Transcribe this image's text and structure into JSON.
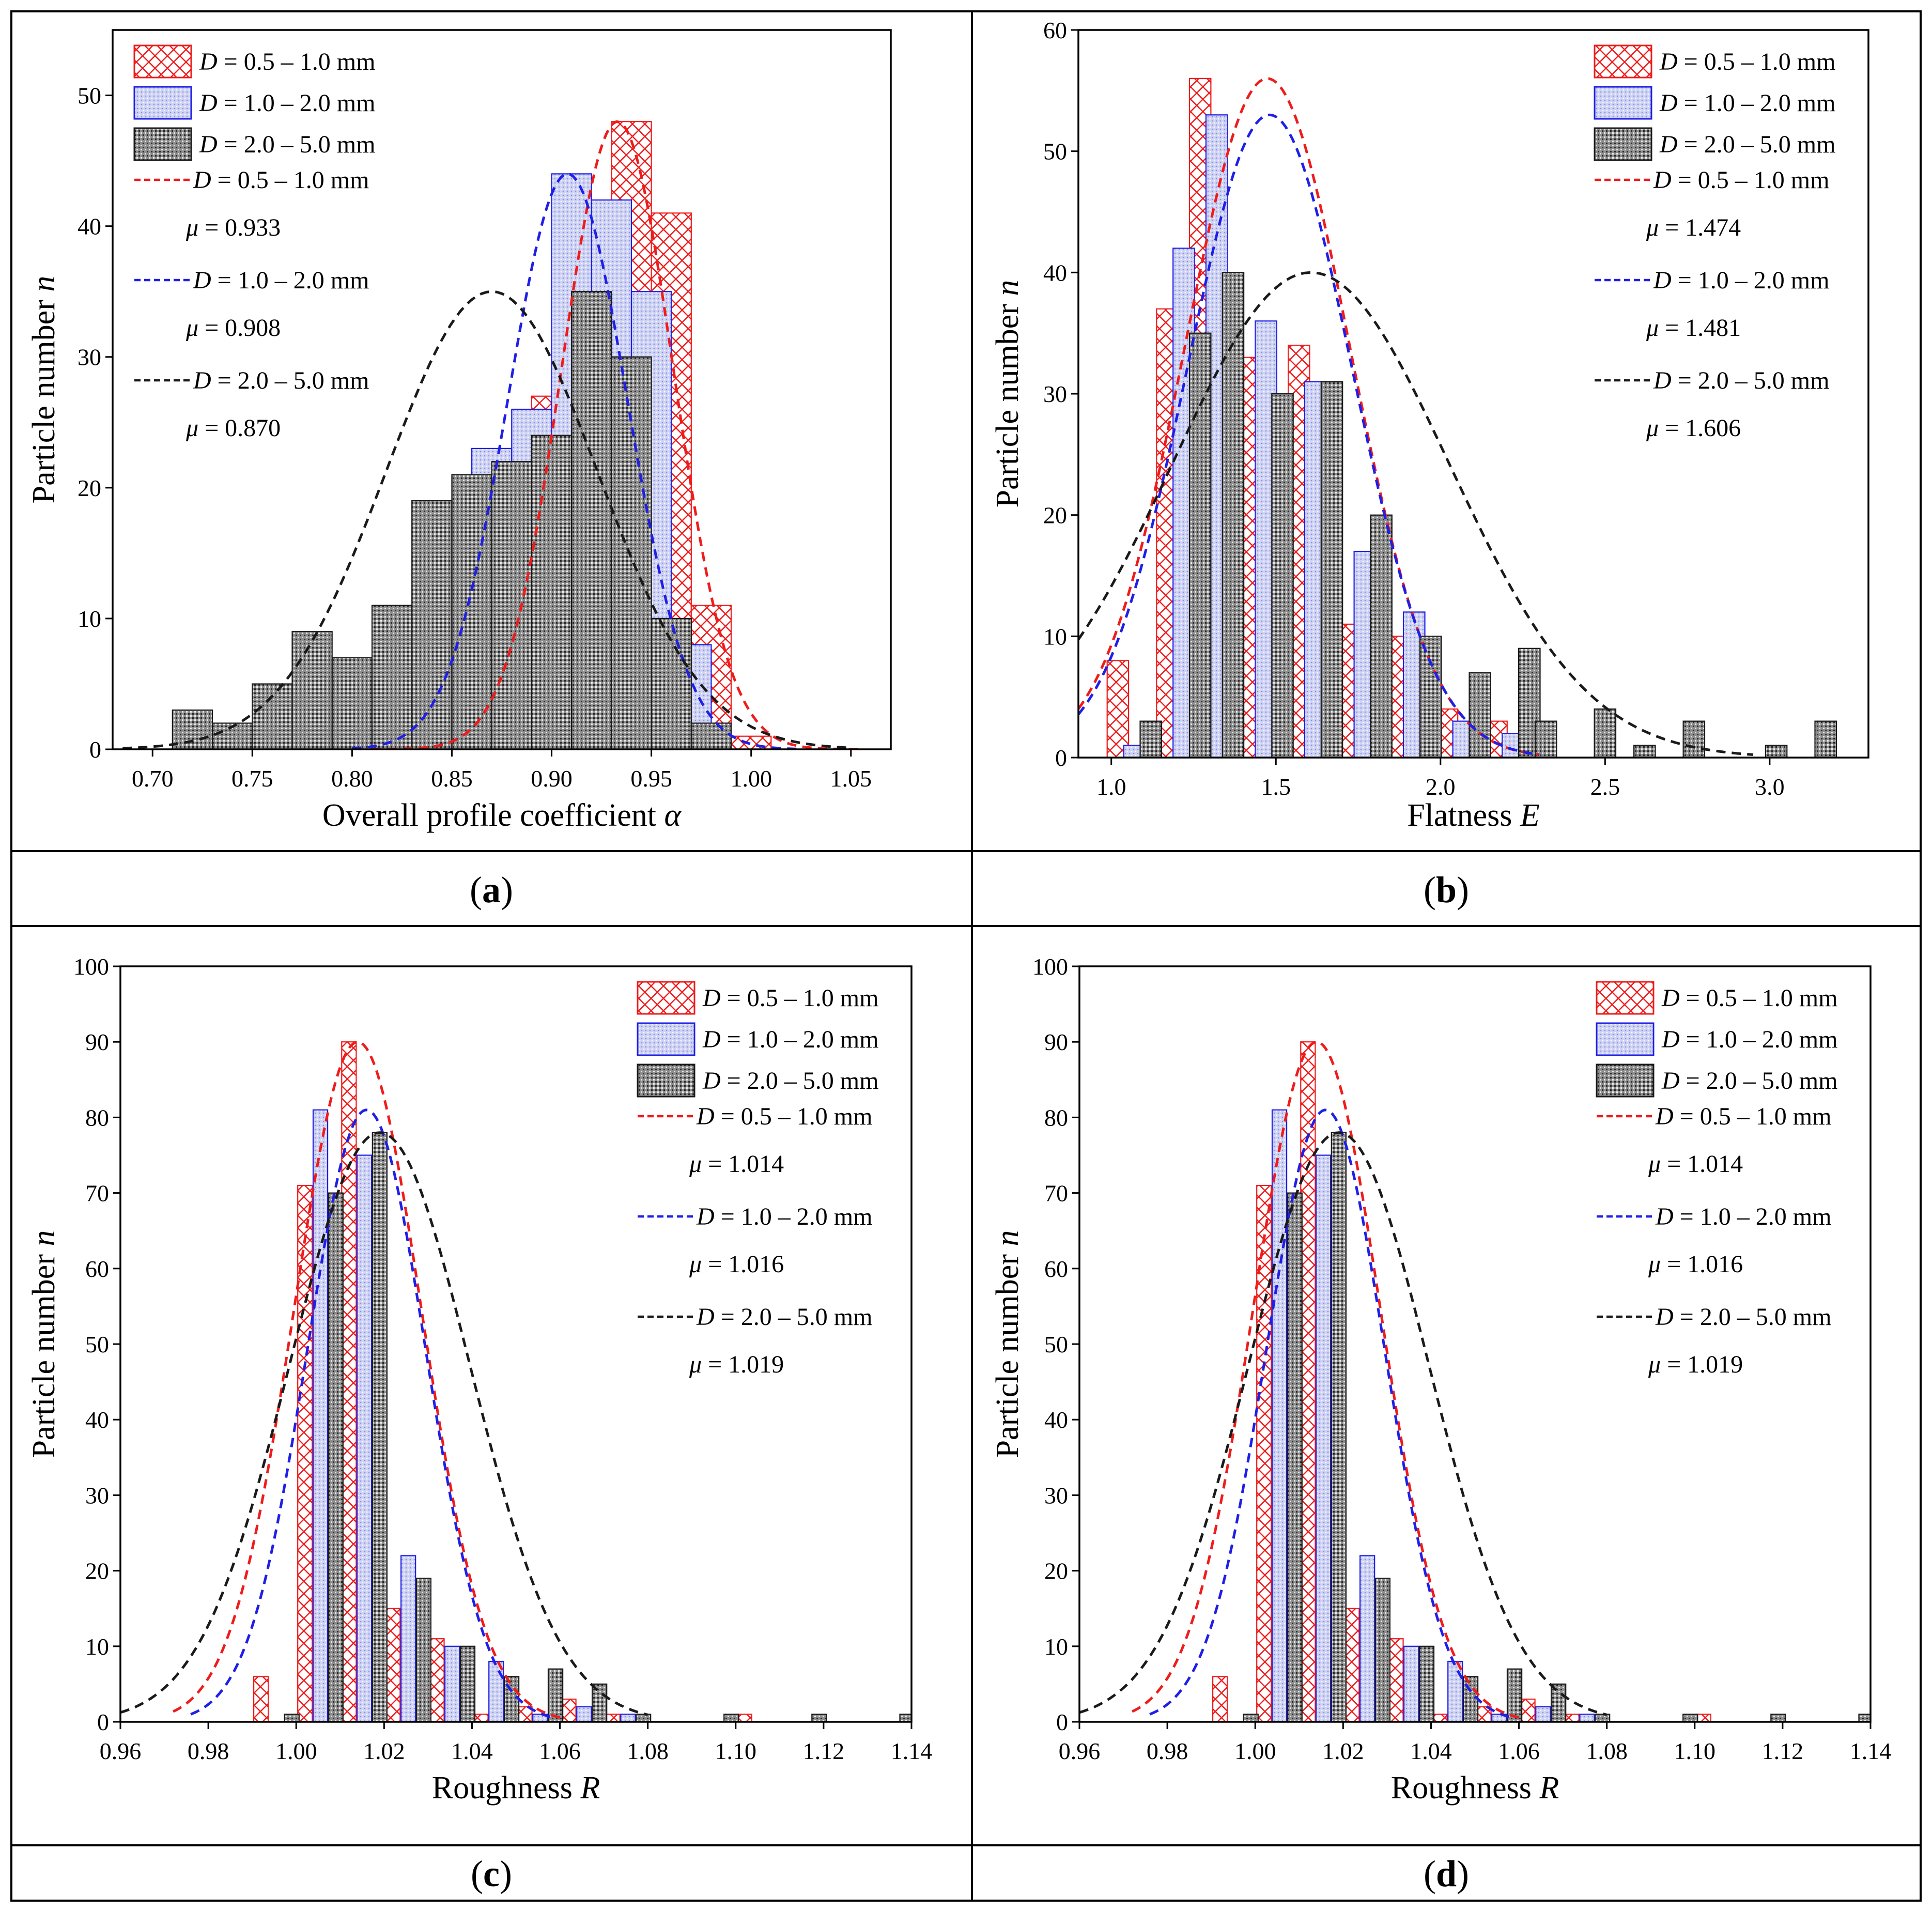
{
  "colors": {
    "red": "#ee1c1c",
    "blue": "#1f1fe6",
    "black": "#1a1a1a",
    "blue_fill": "#cfd3f3",
    "dark_fill": "#8d8d8d"
  },
  "legend_texts": {
    "bar_labels": [
      "= 0.5 – 1.0 mm",
      "= 1.0 – 2.0 mm",
      "= 2.0 – 5.0 mm"
    ],
    "line_labels": [
      "= 0.5 – 1.0 mm",
      "= 1.0 – 2.0 mm",
      "= 2.0 – 5.0 mm"
    ],
    "d_symbol": "D",
    "mu_symbol": "μ"
  },
  "y_axis_label": {
    "text": "Particle number ",
    "var": "n"
  },
  "chart_data": [
    {
      "type": "bar",
      "id": "a",
      "panel_label": "(a)",
      "panel_letter": "a",
      "xlabel": "Overall profile coefficient ",
      "xlabel_var": "α",
      "xlim": [
        0.68,
        1.07
      ],
      "ylim": [
        0,
        55
      ],
      "x_ticks": [
        "0.70",
        "0.75",
        "0.80",
        "0.85",
        "0.90",
        "0.95",
        "1.00",
        "1.05"
      ],
      "y_ticks": [
        "0",
        "10",
        "20",
        "30",
        "40",
        "50"
      ],
      "bin_width": 0.02,
      "mu_values": [
        "= 0.933",
        "= 0.908",
        "= 0.870"
      ],
      "series": [
        {
          "name": "D = 0.5 – 1.0 mm",
          "x": [
            0.8,
            0.82,
            0.84,
            0.86,
            0.88,
            0.9,
            0.92,
            0.94,
            0.96,
            0.98,
            1.0
          ],
          "values": [
            1,
            4,
            5,
            12,
            14,
            27,
            35,
            48,
            41,
            11,
            1
          ]
        },
        {
          "name": "D = 1.0 – 2.0 mm",
          "x": [
            0.81,
            0.83,
            0.85,
            0.87,
            0.89,
            0.91,
            0.93,
            0.95,
            0.97
          ],
          "values": [
            0.5,
            6,
            16,
            23,
            26,
            44,
            42,
            35,
            8
          ]
        },
        {
          "name": "D = 2.0 – 5.0 mm",
          "x": [
            0.72,
            0.74,
            0.76,
            0.78,
            0.8,
            0.82,
            0.84,
            0.86,
            0.88,
            0.9,
            0.92,
            0.94,
            0.96,
            0.98
          ],
          "values": [
            3,
            2,
            5,
            9,
            7,
            11,
            19,
            21,
            22,
            24,
            35,
            30,
            10,
            2
          ]
        }
      ],
      "fits": [
        {
          "name": "D = 0.5 – 1.0 mm",
          "mu": 0.933,
          "peak": 48,
          "sigma": 0.028,
          "from": 0.81,
          "to": 1.055
        },
        {
          "name": "D = 1.0 – 2.0 mm",
          "mu": 0.908,
          "peak": 44,
          "sigma": 0.03,
          "from": 0.8,
          "to": 1.025
        },
        {
          "name": "D = 2.0 – 5.0 mm",
          "mu": 0.87,
          "peak": 35,
          "sigma": 0.053,
          "from": 0.685,
          "to": 1.05
        }
      ]
    },
    {
      "type": "bar",
      "id": "b",
      "panel_label": "(b)",
      "panel_letter": "b",
      "xlabel": "Flatness ",
      "xlabel_var": "E",
      "xlim": [
        0.9,
        3.3
      ],
      "ylim": [
        0,
        60
      ],
      "x_ticks": [
        "1.0",
        "1.5",
        "2.0",
        "2.5",
        "3.0"
      ],
      "y_ticks": [
        "0",
        "10",
        "20",
        "30",
        "40",
        "50",
        "60"
      ],
      "bin_width": 0.065,
      "mu_values": [
        "= 1.474",
        "= 1.481",
        "= 1.606"
      ],
      "series": [
        {
          "name": "D = 0.5 – 1.0 mm",
          "x": [
            1.02,
            1.17,
            1.27,
            1.42,
            1.57,
            1.72,
            1.87,
            2.02,
            2.17
          ],
          "values": [
            8,
            37,
            56,
            33,
            34,
            11,
            10,
            4,
            3
          ]
        },
        {
          "name": "D = 1.0 – 2.0 mm",
          "x": [
            1.07,
            1.22,
            1.32,
            1.47,
            1.62,
            1.77,
            1.92,
            2.07,
            2.22
          ],
          "values": [
            1,
            42,
            53,
            36,
            31,
            17,
            12,
            3,
            2
          ]
        },
        {
          "name": "D = 2.0 – 5.0 mm",
          "x": [
            1.12,
            1.27,
            1.37,
            1.52,
            1.67,
            1.82,
            1.97,
            2.12,
            2.27,
            2.32,
            2.5,
            2.62,
            2.77,
            3.02,
            3.17
          ],
          "values": [
            3,
            35,
            40,
            30,
            31,
            20,
            10,
            7,
            9,
            3,
            4,
            1,
            3,
            1,
            3
          ]
        }
      ],
      "fits": [
        {
          "name": "D = 0.5 – 1.0 mm",
          "mu": 1.474,
          "peak": 56,
          "sigma": 0.25,
          "from": 0.9,
          "to": 2.3
        },
        {
          "name": "D = 1.0 – 2.0 mm",
          "mu": 1.481,
          "peak": 53,
          "sigma": 0.25,
          "from": 0.9,
          "to": 2.3
        },
        {
          "name": "D = 2.0 – 5.0 mm",
          "mu": 1.606,
          "peak": 40,
          "sigma": 0.42,
          "from": 0.9,
          "to": 2.95
        }
      ]
    },
    {
      "type": "bar",
      "id": "c",
      "panel_label": "(c)",
      "panel_letter": "c",
      "xlabel": "Roughness ",
      "xlabel_var": "R",
      "xlim": [
        0.96,
        1.14
      ],
      "ylim": [
        0,
        100
      ],
      "x_ticks": [
        "0.96",
        "0.98",
        "1.00",
        "1.02",
        "1.04",
        "1.06",
        "1.08",
        "1.10",
        "1.12",
        "1.14"
      ],
      "y_ticks": [
        "0",
        "10",
        "20",
        "30",
        "40",
        "50",
        "60",
        "70",
        "80",
        "90",
        "100"
      ],
      "bin_width": 0.0033,
      "mu_values": [
        "= 1.014",
        "= 1.016",
        "= 1.019"
      ],
      "series": [
        {
          "name": "D = 0.5 – 1.0 mm",
          "x": [
            0.992,
            1.002,
            1.012,
            1.022,
            1.032,
            1.042,
            1.052,
            1.062,
            1.072,
            1.102
          ],
          "values": [
            6,
            71,
            90,
            15,
            11,
            1,
            2,
            3,
            1,
            1
          ]
        },
        {
          "name": "D = 1.0 – 2.0 mm",
          "x": [
            1.0055,
            1.0155,
            1.0255,
            1.0355,
            1.0455,
            1.0555,
            1.0655,
            1.0755
          ],
          "values": [
            81,
            75,
            22,
            10,
            8,
            1,
            2,
            1
          ]
        },
        {
          "name": "D = 2.0 – 5.0 mm",
          "x": [
            0.999,
            1.009,
            1.019,
            1.029,
            1.039,
            1.049,
            1.059,
            1.069,
            1.079,
            1.099,
            1.119,
            1.139
          ],
          "values": [
            1,
            70,
            78,
            19,
            10,
            6,
            7,
            5,
            1,
            1,
            1,
            1
          ]
        }
      ],
      "fits": [
        {
          "name": "D = 0.5 – 1.0 mm",
          "mu": 1.014,
          "peak": 90,
          "sigma": 0.0145,
          "from": 0.972,
          "to": 1.06
        },
        {
          "name": "D = 1.0 – 2.0 mm",
          "mu": 1.016,
          "peak": 81,
          "sigma": 0.0135,
          "from": 0.976,
          "to": 1.058
        },
        {
          "name": "D = 2.0 – 5.0 mm",
          "mu": 1.019,
          "peak": 78,
          "sigma": 0.0205,
          "from": 0.96,
          "to": 1.08
        }
      ]
    },
    {
      "type": "bar",
      "id": "d",
      "panel_label": "(d)",
      "panel_letter": "d",
      "xlabel": "Roughness ",
      "xlabel_var": "R",
      "xlim": [
        0.96,
        1.14
      ],
      "ylim": [
        0,
        100
      ],
      "x_ticks": [
        "0.96",
        "0.98",
        "1.00",
        "1.02",
        "1.04",
        "1.06",
        "1.08",
        "1.10",
        "1.12",
        "1.14"
      ],
      "y_ticks": [
        "0",
        "10",
        "20",
        "30",
        "40",
        "50",
        "60",
        "70",
        "80",
        "90",
        "100"
      ],
      "bin_width": 0.0033,
      "mu_values": [
        "= 1.014",
        "= 1.016",
        "= 1.019"
      ],
      "series": [
        {
          "name": "D = 0.5 – 1.0 mm",
          "x": [
            0.992,
            1.002,
            1.012,
            1.022,
            1.032,
            1.042,
            1.052,
            1.062,
            1.072,
            1.102
          ],
          "values": [
            6,
            71,
            90,
            15,
            11,
            1,
            2,
            3,
            1,
            1
          ]
        },
        {
          "name": "D = 1.0 – 2.0 mm",
          "x": [
            1.0055,
            1.0155,
            1.0255,
            1.0355,
            1.0455,
            1.0555,
            1.0655,
            1.0755
          ],
          "values": [
            81,
            75,
            22,
            10,
            8,
            1,
            2,
            1
          ]
        },
        {
          "name": "D = 2.0 – 5.0 mm",
          "x": [
            0.999,
            1.009,
            1.019,
            1.029,
            1.039,
            1.049,
            1.059,
            1.069,
            1.079,
            1.099,
            1.119,
            1.139
          ],
          "values": [
            1,
            70,
            78,
            19,
            10,
            6,
            7,
            5,
            1,
            1,
            1,
            1
          ]
        }
      ],
      "fits": [
        {
          "name": "D = 0.5 – 1.0 mm",
          "mu": 1.014,
          "peak": 90,
          "sigma": 0.0145,
          "from": 0.972,
          "to": 1.06
        },
        {
          "name": "D = 1.0 – 2.0 mm",
          "mu": 1.016,
          "peak": 81,
          "sigma": 0.0135,
          "from": 0.976,
          "to": 1.058
        },
        {
          "name": "D = 2.0 – 5.0 mm",
          "mu": 1.019,
          "peak": 78,
          "sigma": 0.0205,
          "from": 0.96,
          "to": 1.08
        }
      ]
    }
  ]
}
